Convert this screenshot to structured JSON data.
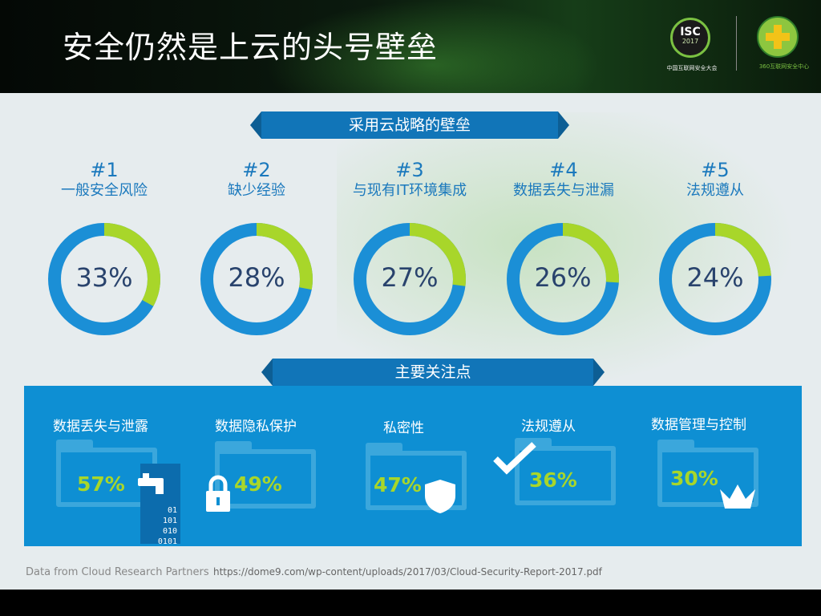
{
  "title": "安全仍然是上云的头号壁垒",
  "logos": {
    "isc_text": "ISC",
    "isc_year": "2017",
    "isc_caption": "中国互联网安全大会",
    "shield_caption": "360互联网安全中心"
  },
  "section1": {
    "ribbon": "采用云战略的壁垒",
    "items": [
      {
        "rank": "#1",
        "label": "一般安全风险",
        "value": "33%",
        "percent": 33
      },
      {
        "rank": "#2",
        "label": "缺少经验",
        "value": "28%",
        "percent": 28
      },
      {
        "rank": "#3",
        "label": "与现有IT环境集成",
        "value": "27%",
        "percent": 27
      },
      {
        "rank": "#4",
        "label": "数据丢失与泄漏",
        "value": "26%",
        "percent": 26
      },
      {
        "rank": "#5",
        "label": "法规遵从",
        "value": "24%",
        "percent": 24
      }
    ]
  },
  "section2": {
    "ribbon": "主要关注点",
    "items": [
      {
        "label": "数据丢失与泄露",
        "value": "57%",
        "icon": "faucet-icon"
      },
      {
        "label": "数据隐私保护",
        "value": "49%",
        "icon": "lock-icon"
      },
      {
        "label": "私密性",
        "value": "47%",
        "icon": "shield-icon"
      },
      {
        "label": "法规遵从",
        "value": "36%",
        "icon": "checkmark-icon"
      },
      {
        "label": "数据管理与控制",
        "value": "30%",
        "icon": "crown-icon"
      }
    ],
    "bits": [
      "01",
      "101",
      "010",
      "0101"
    ]
  },
  "footer": {
    "source": "Data from Cloud Research Partners",
    "url": "https://dome9.com/wp-content/uploads/2017/03/Cloud-Security-Report-2017.pdf"
  },
  "colors": {
    "ring_blue": "#1b8fd6",
    "ring_green": "#a8d62a",
    "accent_blue": "#1175b8"
  }
}
